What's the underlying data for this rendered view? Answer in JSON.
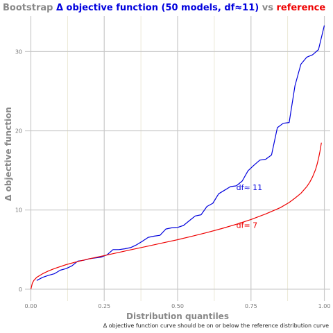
{
  "chart_data": {
    "type": "line",
    "title_parts": [
      {
        "text": "Bootstrap ",
        "color": "#888888"
      },
      {
        "text": "Δ objective function (50 models, df≈11)",
        "color": "#0000dd"
      },
      {
        "text": " vs ",
        "color": "#888888"
      },
      {
        "text": "reference",
        "color": "#ee0000"
      }
    ],
    "xlabel": "Distribution quantiles",
    "ylabel": "Δ objective function",
    "caption": "Δ objective function curve should be on or below the reference distribution curve",
    "xlim": [
      -0.02,
      1.02
    ],
    "ylim": [
      -1.5,
      34.5
    ],
    "x_major_ticks": [
      0.0,
      0.25,
      0.5,
      0.75,
      1.0
    ],
    "x_tick_labels": [
      "0.00",
      "0.25",
      "0.50",
      "0.75",
      "1.00"
    ],
    "x_minor_ticks": [
      0.125,
      0.375,
      0.625,
      0.875
    ],
    "y_major_ticks": [
      0,
      10,
      20,
      30
    ],
    "y_tick_labels": [
      "0",
      "10",
      "20",
      "30"
    ],
    "grid": true,
    "series": [
      {
        "name": "df≈ 11",
        "color": "#0000dd",
        "x": [
          0.02,
          0.04,
          0.06,
          0.08,
          0.1,
          0.12,
          0.14,
          0.16,
          0.18,
          0.2,
          0.22,
          0.24,
          0.26,
          0.28,
          0.3,
          0.32,
          0.34,
          0.36,
          0.38,
          0.4,
          0.42,
          0.44,
          0.46,
          0.48,
          0.5,
          0.52,
          0.54,
          0.56,
          0.58,
          0.6,
          0.62,
          0.64,
          0.66,
          0.68,
          0.7,
          0.72,
          0.74,
          0.76,
          0.78,
          0.8,
          0.82,
          0.84,
          0.86,
          0.88,
          0.9,
          0.92,
          0.94,
          0.96,
          0.98,
          1.0
        ],
        "y": [
          1.1,
          1.5,
          1.75,
          1.95,
          2.4,
          2.6,
          2.95,
          3.55,
          3.65,
          3.85,
          3.95,
          4.05,
          4.35,
          5.0,
          5.0,
          5.1,
          5.25,
          5.6,
          6.05,
          6.55,
          6.7,
          6.8,
          7.6,
          7.75,
          7.8,
          8.05,
          8.65,
          9.25,
          9.4,
          10.45,
          10.85,
          12.05,
          12.5,
          12.95,
          13.05,
          13.65,
          14.95,
          15.65,
          16.3,
          16.4,
          16.95,
          20.4,
          20.95,
          21.05,
          25.7,
          28.4,
          29.3,
          29.6,
          30.25,
          33.3
        ]
      },
      {
        "name": "df= 7",
        "color": "#ee0000",
        "x": [
          0.0,
          0.005,
          0.01,
          0.02,
          0.04,
          0.06,
          0.08,
          0.1,
          0.12,
          0.15,
          0.2,
          0.25,
          0.3,
          0.35,
          0.4,
          0.45,
          0.5,
          0.55,
          0.6,
          0.65,
          0.7,
          0.75,
          0.8,
          0.85,
          0.88,
          0.9,
          0.92,
          0.94,
          0.95,
          0.96,
          0.97,
          0.975,
          0.98,
          0.985,
          0.99
        ],
        "y": [
          0.0,
          0.75,
          1.1,
          1.5,
          1.95,
          2.3,
          2.6,
          2.85,
          3.1,
          3.4,
          3.85,
          4.25,
          4.65,
          5.05,
          5.45,
          5.85,
          6.25,
          6.7,
          7.15,
          7.65,
          8.2,
          8.8,
          9.5,
          10.3,
          10.95,
          11.5,
          12.1,
          12.95,
          13.5,
          14.2,
          15.1,
          15.75,
          16.5,
          17.4,
          18.5
        ]
      }
    ],
    "annotations": [
      {
        "text": "df≈ 11",
        "x": 0.7,
        "y": 12.85,
        "color": "#0000dd"
      },
      {
        "text": "df= 7",
        "x": 0.7,
        "y": 8.1,
        "color": "#ee0000"
      }
    ]
  }
}
